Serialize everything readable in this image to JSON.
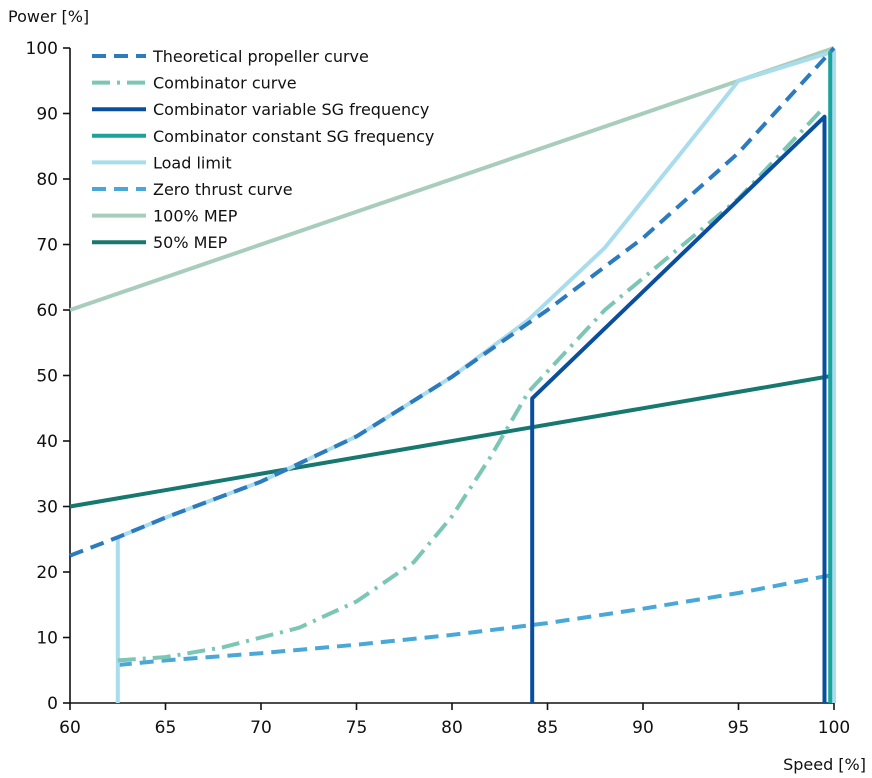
{
  "chart_data": {
    "type": "line",
    "ylabel": "Power [%]",
    "xlabel": "Speed [%]",
    "xlim": [
      60,
      100
    ],
    "ylim": [
      0,
      100
    ],
    "xticks": [
      "60",
      "65",
      "70",
      "75",
      "80",
      "85",
      "90",
      "95",
      "100"
    ],
    "yticks": [
      "0",
      "10",
      "20",
      "30",
      "40",
      "50",
      "60",
      "70",
      "80",
      "90",
      "100"
    ],
    "grid": false,
    "legend_position": "top-left",
    "series": [
      {
        "name": "Theoretical propeller curve",
        "color": "#2c7bbf",
        "dash": "dashed",
        "x": [
          60,
          62.5,
          65,
          70,
          75,
          80,
          84,
          85,
          90,
          95,
          100
        ],
        "y": [
          22.5,
          25.3,
          28.3,
          33.8,
          40.7,
          49.8,
          58.0,
          60.0,
          71.0,
          84.0,
          100
        ]
      },
      {
        "name": "Combinator curve",
        "color": "#7cc6b6",
        "dash": "dashdot",
        "x": [
          62.5,
          65,
          68,
          72,
          75,
          78,
          80,
          82,
          84,
          88,
          95,
          99.5
        ],
        "y": [
          6.5,
          7.0,
          8.5,
          11.5,
          15.5,
          21.5,
          28.5,
          37.5,
          47.5,
          60.0,
          77.0,
          91.0
        ]
      },
      {
        "name": "Combinator variable SG frequency",
        "color": "#0a4f9e",
        "dash": "solid",
        "x": [
          84.2,
          84.2,
          99.5,
          99.5
        ],
        "y": [
          0,
          46.5,
          89.5,
          0
        ]
      },
      {
        "name": "Combinator constant SG frequency",
        "color": "#1aa39a",
        "dash": "solid",
        "x": [
          99.8,
          99.8
        ],
        "y": [
          0,
          99.5
        ]
      },
      {
        "name": "Load limit",
        "color": "#a9dcec",
        "dash": "solid",
        "x": [
          62.5,
          62.5,
          65,
          70,
          75,
          80,
          84,
          88,
          92,
          95,
          100,
          100
        ],
        "y": [
          0,
          25.3,
          28.3,
          33.8,
          40.7,
          49.8,
          58.5,
          69.5,
          84.0,
          95.0,
          99.5,
          0
        ]
      },
      {
        "name": "Zero thrust curve",
        "color": "#4aa8d8",
        "dash": "dashed",
        "x": [
          62.5,
          65,
          70,
          75,
          80,
          85,
          90,
          95,
          100
        ],
        "y": [
          5.8,
          6.5,
          7.6,
          8.9,
          10.4,
          12.2,
          14.4,
          16.8,
          19.6
        ]
      },
      {
        "name": "100% MEP",
        "color": "#a9cdbd",
        "dash": "solid",
        "x": [
          60,
          100
        ],
        "y": [
          60,
          100
        ]
      },
      {
        "name": "50% MEP",
        "color": "#16786f",
        "dash": "solid",
        "x": [
          60,
          100
        ],
        "y": [
          30,
          50
        ]
      }
    ]
  }
}
